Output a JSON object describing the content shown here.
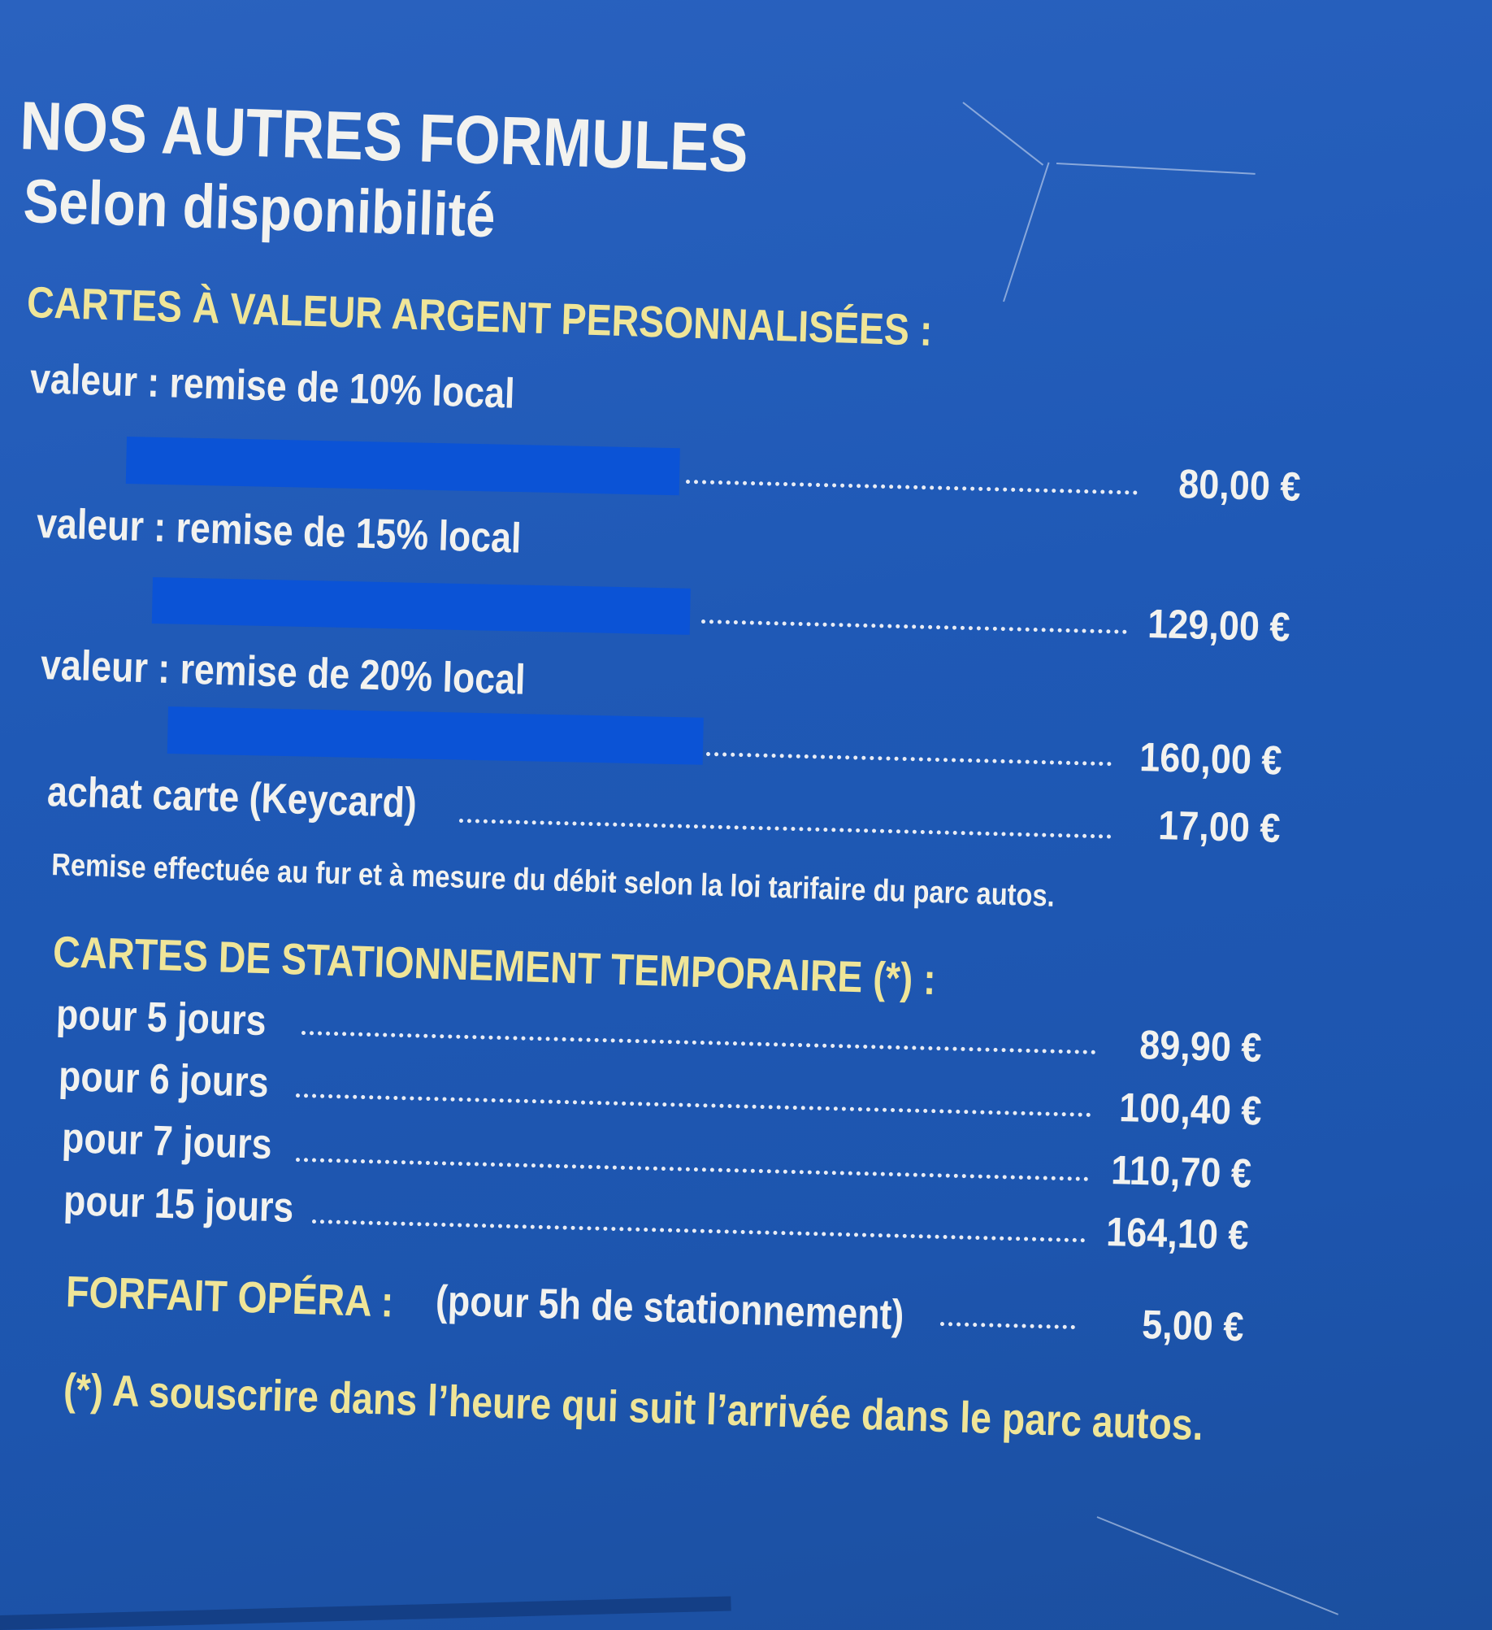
{
  "header": {
    "title": "NOS AUTRES FORMULES",
    "subtitle": "Selon disponibilité"
  },
  "value_cards": {
    "heading": "CARTES À VALEUR ARGENT PERSONNALISÉES :",
    "items": [
      {
        "label": "valeur : remise de 10% local",
        "price": "80,00 €"
      },
      {
        "label": "valeur : remise de 15% local",
        "price": "129,00 €"
      },
      {
        "label": "valeur : remise de 20% local",
        "price": "160,00 €"
      }
    ],
    "keycard": {
      "label": "achat carte (Keycard)",
      "price": "17,00 €"
    },
    "note": "Remise effectuée au fur et à mesure du débit selon la loi tarifaire du parc autos."
  },
  "temporary_cards": {
    "heading": "CARTES DE STATIONNEMENT TEMPORAIRE (*) :",
    "items": [
      {
        "label": "pour 5 jours",
        "price": "89,90 €"
      },
      {
        "label": "pour 6 jours",
        "price": "100,40 €"
      },
      {
        "label": "pour 7 jours",
        "price": "110,70 €"
      },
      {
        "label": "pour 15 jours",
        "price": "164,10 €"
      }
    ]
  },
  "opera": {
    "heading": "FORFAIT OPÉRA :",
    "detail": "(pour 5h de stationnement)",
    "price": "5,00 €"
  },
  "footnote": "(*) A souscrire dans l’heure qui suit l’arrivée dans le parc autos.",
  "colors": {
    "background": "#1f59b6",
    "heading_yellow": "#efe598",
    "text_white": "#f2f2ef",
    "redaction_blue": "#0b53d6"
  }
}
